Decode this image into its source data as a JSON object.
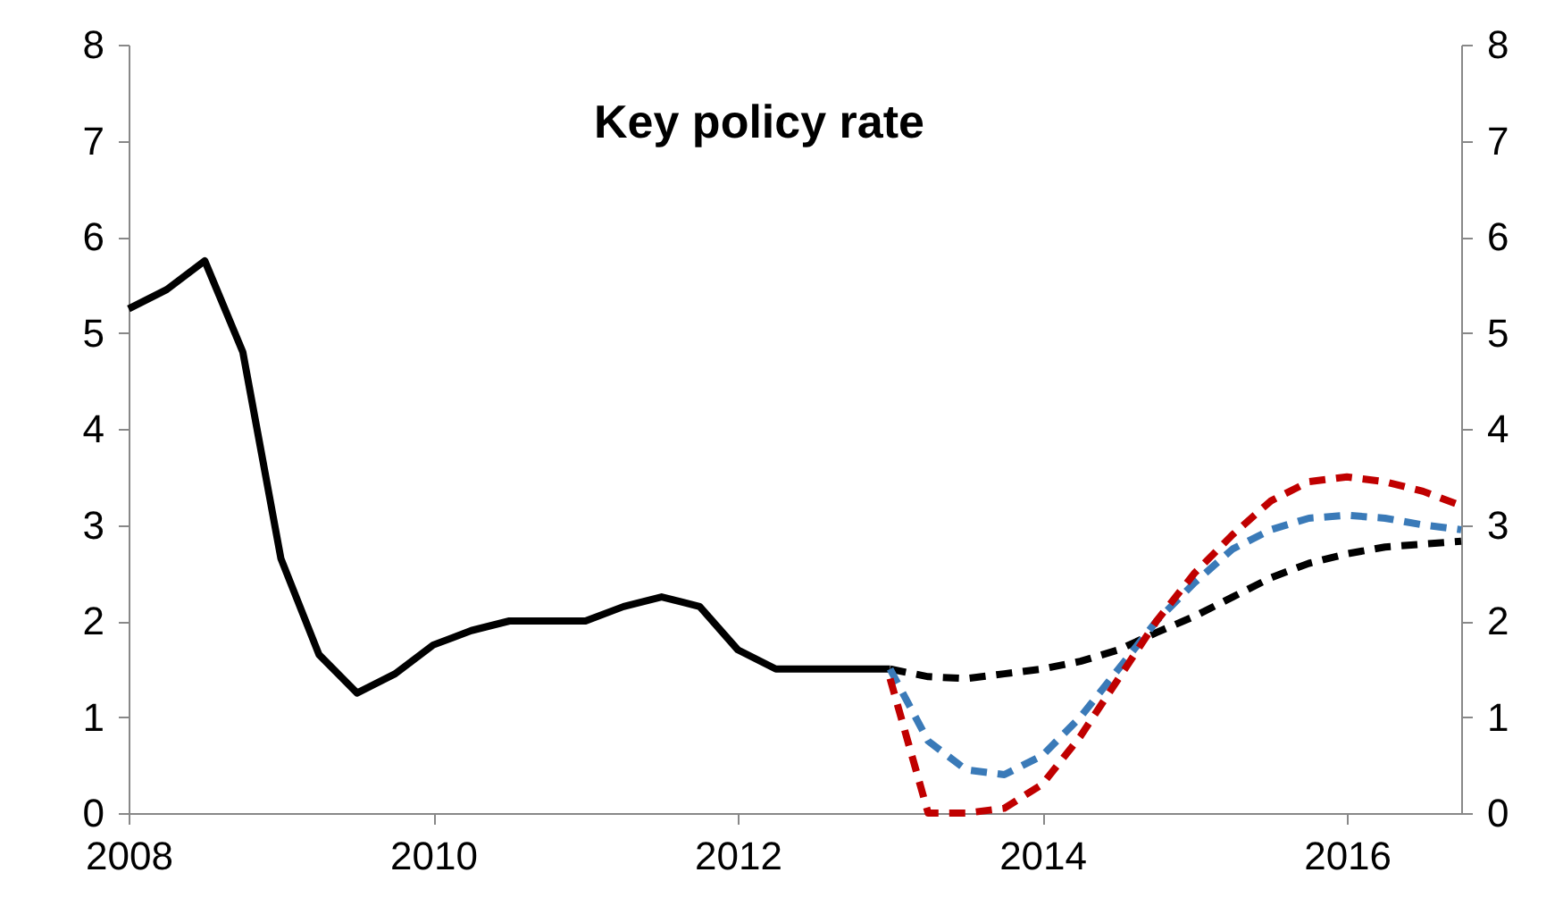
{
  "chart_data": {
    "type": "line",
    "title": "Key policy rate",
    "xlim": [
      2008,
      2016.75
    ],
    "xticks": [
      2008,
      2010,
      2012,
      2014,
      2016
    ],
    "ylim": [
      0,
      8
    ],
    "yticks": [
      0,
      1,
      2,
      3,
      4,
      5,
      6,
      7,
      8
    ],
    "y2lim": [
      0,
      8
    ],
    "y2ticks": [
      0,
      1,
      2,
      3,
      4,
      5,
      6,
      7,
      8
    ],
    "series": [
      {
        "color": "#000000",
        "line_style": "solid",
        "x": [
          2008,
          2008.25,
          2008.5,
          2008.75,
          2009,
          2009.25,
          2009.5,
          2009.75,
          2010,
          2010.25,
          2010.5,
          2010.75,
          2011,
          2011.25,
          2011.5,
          2011.75,
          2012,
          2012.25,
          2012.5,
          2012.75,
          2013
        ],
        "values": [
          5.25,
          5.45,
          5.75,
          4.8,
          2.65,
          1.65,
          1.25,
          1.45,
          1.75,
          1.9,
          2.0,
          2.0,
          2.0,
          2.15,
          2.25,
          2.15,
          1.7,
          1.5,
          1.5,
          1.5,
          1.5
        ]
      },
      {
        "color": "#000000",
        "line_style": "dashed",
        "x": [
          2013,
          2013.25,
          2013.5,
          2013.75,
          2014,
          2014.25,
          2014.5,
          2014.75,
          2015,
          2015.25,
          2015.5,
          2015.75,
          2016,
          2016.25,
          2016.5,
          2016.75
        ],
        "values": [
          1.5,
          1.42,
          1.4,
          1.45,
          1.5,
          1.58,
          1.7,
          1.88,
          2.05,
          2.25,
          2.45,
          2.6,
          2.7,
          2.77,
          2.8,
          2.83
        ]
      },
      {
        "color": "#3a7ab8",
        "line_style": "dashed",
        "x": [
          2013,
          2013.25,
          2013.5,
          2013.75,
          2014,
          2014.25,
          2014.5,
          2014.75,
          2015,
          2015.25,
          2015.5,
          2015.75,
          2016,
          2016.25,
          2016.5,
          2016.75
        ],
        "values": [
          1.5,
          0.75,
          0.45,
          0.4,
          0.6,
          1.0,
          1.5,
          2.0,
          2.4,
          2.75,
          2.95,
          3.07,
          3.1,
          3.07,
          3.0,
          2.95
        ]
      },
      {
        "color": "#c00000",
        "line_style": "dashed",
        "x": [
          2013,
          2013.25,
          2013.5,
          2013.75,
          2014,
          2014.25,
          2014.5,
          2014.75,
          2015,
          2015.25,
          2015.5,
          2015.75,
          2016,
          2016.25,
          2016.5,
          2016.75
        ],
        "values": [
          1.4,
          0.0,
          0.0,
          0.05,
          0.3,
          0.8,
          1.4,
          2.0,
          2.5,
          2.9,
          3.25,
          3.45,
          3.5,
          3.45,
          3.35,
          3.2
        ]
      }
    ]
  }
}
